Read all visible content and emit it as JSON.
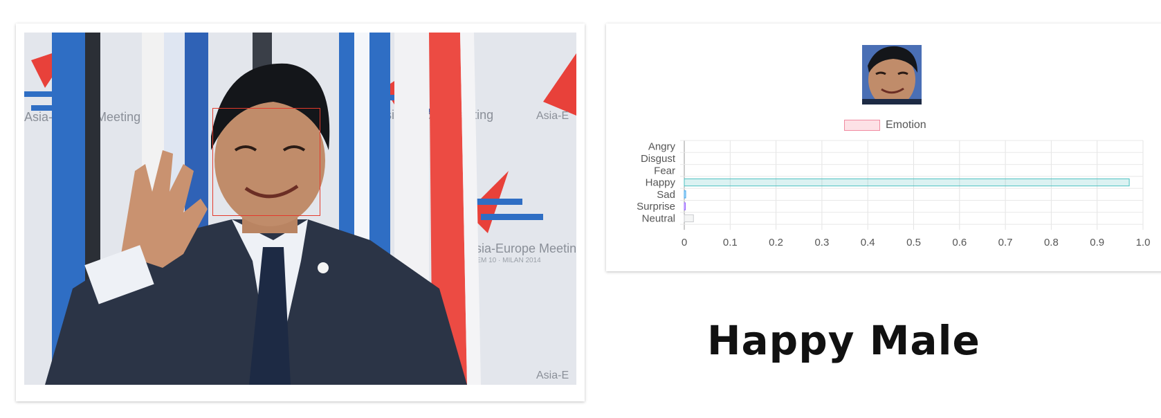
{
  "photo": {
    "subject": "man-in-suit-waving",
    "face_box_color": "#e53a2c"
  },
  "backdrop": {
    "texts": [
      "Asia-Europe Meeting",
      "ASEM 10 · MILAN 2014",
      "Asia-E"
    ],
    "accent_red": "#e8413a",
    "accent_blue": "#2f6ec4"
  },
  "chart_data": {
    "type": "bar",
    "orientation": "horizontal",
    "categories": [
      "Angry",
      "Disgust",
      "Fear",
      "Happy",
      "Sad",
      "Surprise",
      "Neutral"
    ],
    "series": [
      {
        "name": "Emotion",
        "values": [
          0.0,
          0.0,
          0.0,
          0.97,
          0.003,
          0.001,
          0.02
        ],
        "colors": [
          "#ff6384",
          "#ff9f40",
          "#ffcd56",
          "#4bc0c0",
          "#36a2eb",
          "#9966ff",
          "#c9cbcf"
        ]
      }
    ],
    "xlim": [
      0,
      1.0
    ],
    "xticks": [
      "0",
      "0.1",
      "0.2",
      "0.3",
      "0.4",
      "0.5",
      "0.6",
      "0.7",
      "0.8",
      "0.9",
      "1.0"
    ],
    "legend_position": "top",
    "grid": true
  },
  "result": {
    "label": "Happy Male"
  }
}
